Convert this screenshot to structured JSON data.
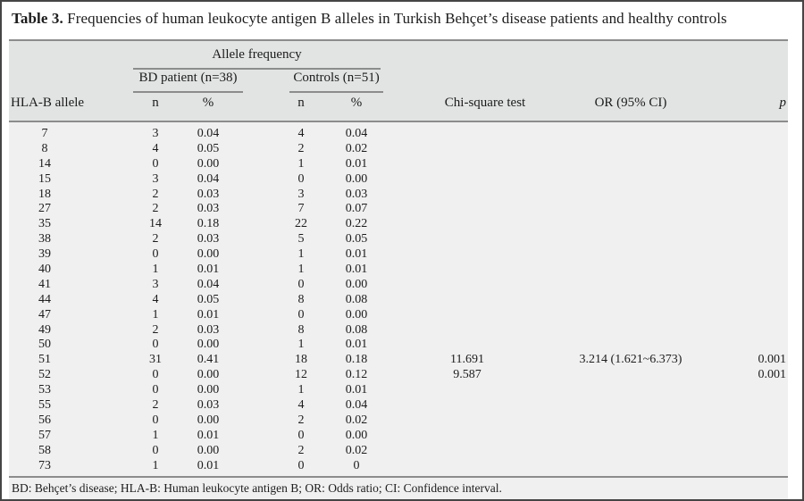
{
  "title": {
    "label": "Table 3.",
    "caption": "Frequencies of human leukocyte antigen B alleles in Turkish Behçet’s disease patients and healthy controls"
  },
  "header": {
    "row_label": "HLA-B allele",
    "group": "Allele frequency",
    "bd_group": "BD patient (n=38)",
    "controls_group": "Controls (n=51)",
    "n": "n",
    "pct": "%",
    "chi": "Chi-square test",
    "or": "OR (95% CI)",
    "p": "p"
  },
  "rows": [
    {
      "allele": "7",
      "bd_n": "3",
      "bd_pct": "0.04",
      "ct_n": "4",
      "ct_pct": "0.04",
      "chi": "",
      "or": "",
      "p": ""
    },
    {
      "allele": "8",
      "bd_n": "4",
      "bd_pct": "0.05",
      "ct_n": "2",
      "ct_pct": "0.02",
      "chi": "",
      "or": "",
      "p": ""
    },
    {
      "allele": "14",
      "bd_n": "0",
      "bd_pct": "0.00",
      "ct_n": "1",
      "ct_pct": "0.01",
      "chi": "",
      "or": "",
      "p": ""
    },
    {
      "allele": "15",
      "bd_n": "3",
      "bd_pct": "0.04",
      "ct_n": "0",
      "ct_pct": "0.00",
      "chi": "",
      "or": "",
      "p": ""
    },
    {
      "allele": "18",
      "bd_n": "2",
      "bd_pct": "0.03",
      "ct_n": "3",
      "ct_pct": "0.03",
      "chi": "",
      "or": "",
      "p": ""
    },
    {
      "allele": "27",
      "bd_n": "2",
      "bd_pct": "0.03",
      "ct_n": "7",
      "ct_pct": "0.07",
      "chi": "",
      "or": "",
      "p": ""
    },
    {
      "allele": "35",
      "bd_n": "14",
      "bd_pct": "0.18",
      "ct_n": "22",
      "ct_pct": "0.22",
      "chi": "",
      "or": "",
      "p": ""
    },
    {
      "allele": "38",
      "bd_n": "2",
      "bd_pct": "0.03",
      "ct_n": "5",
      "ct_pct": "0.05",
      "chi": "",
      "or": "",
      "p": ""
    },
    {
      "allele": "39",
      "bd_n": "0",
      "bd_pct": "0.00",
      "ct_n": "1",
      "ct_pct": "0.01",
      "chi": "",
      "or": "",
      "p": ""
    },
    {
      "allele": "40",
      "bd_n": "1",
      "bd_pct": "0.01",
      "ct_n": "1",
      "ct_pct": "0.01",
      "chi": "",
      "or": "",
      "p": ""
    },
    {
      "allele": "41",
      "bd_n": "3",
      "bd_pct": "0.04",
      "ct_n": "0",
      "ct_pct": "0.00",
      "chi": "",
      "or": "",
      "p": ""
    },
    {
      "allele": "44",
      "bd_n": "4",
      "bd_pct": "0.05",
      "ct_n": "8",
      "ct_pct": "0.08",
      "chi": "",
      "or": "",
      "p": ""
    },
    {
      "allele": "47",
      "bd_n": "1",
      "bd_pct": "0.01",
      "ct_n": "0",
      "ct_pct": "0.00",
      "chi": "",
      "or": "",
      "p": ""
    },
    {
      "allele": "49",
      "bd_n": "2",
      "bd_pct": "0.03",
      "ct_n": "8",
      "ct_pct": "0.08",
      "chi": "",
      "or": "",
      "p": ""
    },
    {
      "allele": "50",
      "bd_n": "0",
      "bd_pct": "0.00",
      "ct_n": "1",
      "ct_pct": "0.01",
      "chi": "",
      "or": "",
      "p": ""
    },
    {
      "allele": "51",
      "bd_n": "31",
      "bd_pct": "0.41",
      "ct_n": "18",
      "ct_pct": "0.18",
      "chi": "11.691",
      "or": "3.214 (1.621~6.373)",
      "p": "0.001"
    },
    {
      "allele": "52",
      "bd_n": "0",
      "bd_pct": "0.00",
      "ct_n": "12",
      "ct_pct": "0.12",
      "chi": "9.587",
      "or": "",
      "p": "0.001"
    },
    {
      "allele": "53",
      "bd_n": "0",
      "bd_pct": "0.00",
      "ct_n": "1",
      "ct_pct": "0.01",
      "chi": "",
      "or": "",
      "p": ""
    },
    {
      "allele": "55",
      "bd_n": "2",
      "bd_pct": "0.03",
      "ct_n": "4",
      "ct_pct": "0.04",
      "chi": "",
      "or": "",
      "p": ""
    },
    {
      "allele": "56",
      "bd_n": "0",
      "bd_pct": "0.00",
      "ct_n": "2",
      "ct_pct": "0.02",
      "chi": "",
      "or": "",
      "p": ""
    },
    {
      "allele": "57",
      "bd_n": "1",
      "bd_pct": "0.01",
      "ct_n": "0",
      "ct_pct": "0.00",
      "chi": "",
      "or": "",
      "p": ""
    },
    {
      "allele": "58",
      "bd_n": "0",
      "bd_pct": "0.00",
      "ct_n": "2",
      "ct_pct": "0.02",
      "chi": "",
      "or": "",
      "p": ""
    },
    {
      "allele": "73",
      "bd_n": "1",
      "bd_pct": "0.01",
      "ct_n": "0",
      "ct_pct": "0",
      "chi": "",
      "or": "",
      "p": ""
    }
  ],
  "footnote": "BD: Behçet’s disease; HLA-B: Human leukocyte antigen B; OR: Odds ratio; CI: Confidence interval.",
  "colors": {
    "header_band": "#e2e3e3",
    "body_band": "#f0f0f0",
    "rule": "#8c8c8c",
    "border": "#454545",
    "text": "#1c1c1c"
  }
}
